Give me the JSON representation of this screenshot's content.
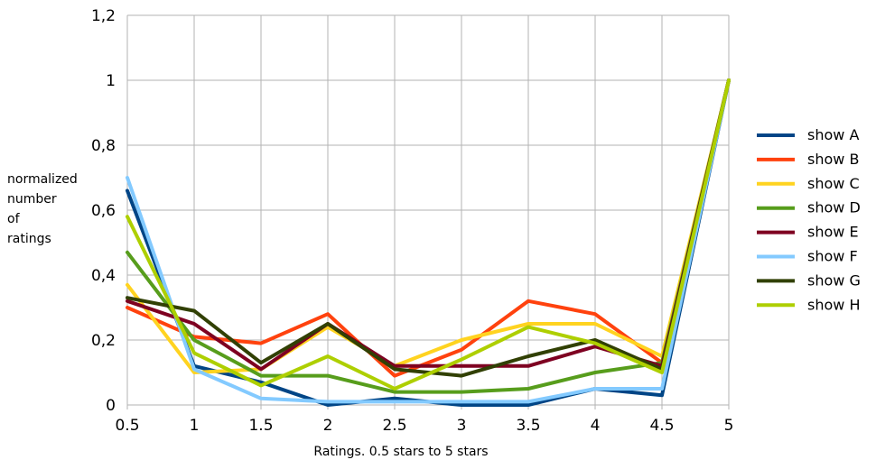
{
  "chart_data": {
    "type": "line",
    "xlabel": "Ratings. 0.5 stars to 5 stars",
    "ylabel_lines": [
      "normalized",
      "number",
      "of",
      "ratings"
    ],
    "x": [
      0.5,
      1,
      1.5,
      2,
      2.5,
      3,
      3.5,
      4,
      4.5,
      5
    ],
    "x_tick_labels": [
      "0.5",
      "1",
      "1.5",
      "2",
      "2.5",
      "3",
      "3.5",
      "4",
      "4.5",
      "5"
    ],
    "ylim": [
      0,
      1.2
    ],
    "y_ticks": [
      0,
      0.2,
      0.4,
      0.6,
      0.8,
      1,
      1.2
    ],
    "y_tick_labels": [
      "0",
      "0,2",
      "0,4",
      "0,6",
      "0,8",
      "1",
      "1,2"
    ],
    "grid": true,
    "legend_position": "right",
    "series": [
      {
        "name": "show A",
        "color": "#004586",
        "values": [
          0.66,
          0.12,
          0.07,
          0.0,
          0.02,
          0.0,
          0.0,
          0.05,
          0.03,
          1.0
        ]
      },
      {
        "name": "show B",
        "color": "#ff420e",
        "values": [
          0.3,
          0.21,
          0.19,
          0.28,
          0.09,
          0.17,
          0.32,
          0.28,
          0.13,
          1.0
        ]
      },
      {
        "name": "show C",
        "color": "#ffd320",
        "values": [
          0.37,
          0.1,
          0.11,
          0.24,
          0.12,
          0.2,
          0.25,
          0.25,
          0.15,
          1.0
        ]
      },
      {
        "name": "show D",
        "color": "#579d1c",
        "values": [
          0.47,
          0.2,
          0.09,
          0.09,
          0.04,
          0.04,
          0.05,
          0.1,
          0.13,
          1.0
        ]
      },
      {
        "name": "show E",
        "color": "#7e0021",
        "values": [
          0.32,
          0.25,
          0.11,
          0.25,
          0.12,
          0.12,
          0.12,
          0.18,
          0.12,
          1.0
        ]
      },
      {
        "name": "show F",
        "color": "#83caff",
        "values": [
          0.7,
          0.11,
          0.02,
          0.01,
          0.01,
          0.01,
          0.01,
          0.05,
          0.05,
          1.0
        ]
      },
      {
        "name": "show G",
        "color": "#314004",
        "values": [
          0.33,
          0.29,
          0.13,
          0.25,
          0.11,
          0.09,
          0.15,
          0.2,
          0.11,
          1.0
        ]
      },
      {
        "name": "show H",
        "color": "#aecf00",
        "values": [
          0.58,
          0.16,
          0.06,
          0.15,
          0.05,
          0.14,
          0.24,
          0.19,
          0.1,
          1.0
        ]
      }
    ]
  }
}
